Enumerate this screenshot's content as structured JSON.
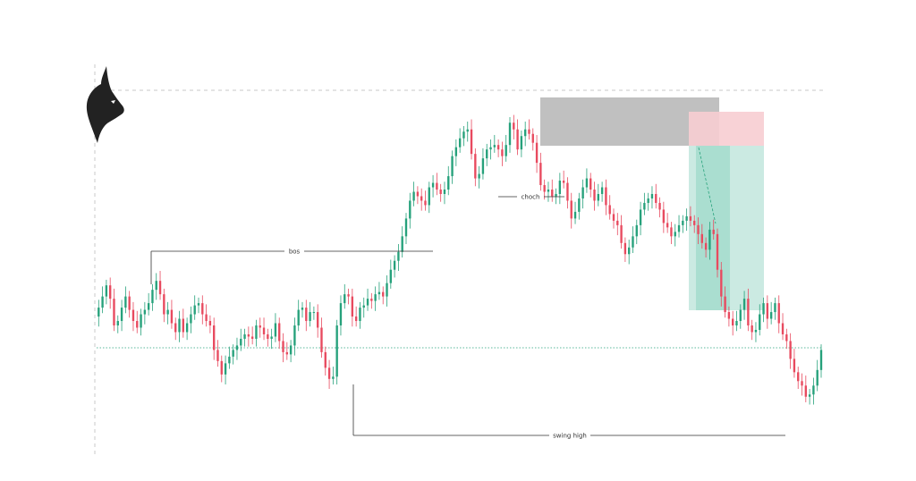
{
  "chart_data": {
    "type": "candlestick",
    "title": "",
    "xlabel": "",
    "ylabel": "",
    "ylim": [
      0,
      100
    ],
    "grid": false,
    "legend": "none",
    "colors": {
      "bull": "#26a17b",
      "bear": "#e84a5f",
      "zone_supply": "#bdbdbd",
      "zone_stop": "#f7cdd2",
      "zone_target": "#b9e3d8"
    },
    "closes": [
      37,
      41,
      46,
      51,
      45,
      33,
      35,
      41,
      46,
      40,
      35,
      32,
      38,
      40,
      43,
      49,
      53,
      47,
      38,
      40,
      34,
      30,
      36,
      30,
      34,
      38,
      42,
      43,
      38,
      35,
      33,
      22,
      17,
      11,
      16,
      19,
      22,
      24,
      27,
      29,
      28,
      27,
      33,
      32,
      29,
      27,
      28,
      34,
      26,
      21,
      20,
      24,
      33,
      40,
      41,
      35,
      39,
      39,
      32,
      21,
      14,
      9,
      10,
      33,
      43,
      47,
      46,
      37,
      35,
      41,
      42,
      45,
      44,
      47,
      48,
      46,
      52,
      58,
      62,
      66,
      73,
      81,
      89,
      93,
      91,
      89,
      87,
      95,
      97,
      94,
      92,
      94,
      100,
      109,
      113,
      117,
      120,
      121,
      110,
      99,
      101,
      108,
      112,
      113,
      114,
      112,
      109,
      114,
      124,
      121,
      112,
      118,
      121,
      119,
      115,
      106,
      96,
      93,
      94,
      91,
      92,
      98,
      97,
      89,
      81,
      84,
      90,
      95,
      99,
      94,
      89,
      92,
      95,
      87,
      83,
      80,
      78,
      70,
      65,
      68,
      73,
      78,
      85,
      88,
      90,
      92,
      88,
      85,
      79,
      77,
      73,
      75,
      78,
      80,
      82,
      80,
      78,
      74,
      70,
      67,
      76,
      74,
      58,
      46,
      39,
      36,
      33,
      35,
      40,
      45,
      33,
      30,
      31,
      38,
      43,
      36,
      39,
      43,
      34,
      29,
      26,
      18,
      12,
      8,
      6,
      1,
      2,
      6,
      13,
      22
    ],
    "annotations": [
      {
        "label": "bos",
        "type": "horizontal-level"
      },
      {
        "label": "choch",
        "type": "horizontal-level"
      },
      {
        "label": "swing high",
        "type": "horizontal-level"
      }
    ]
  },
  "labels": {
    "bos": "bos",
    "choch": "choch",
    "swing_high": "swing high"
  }
}
